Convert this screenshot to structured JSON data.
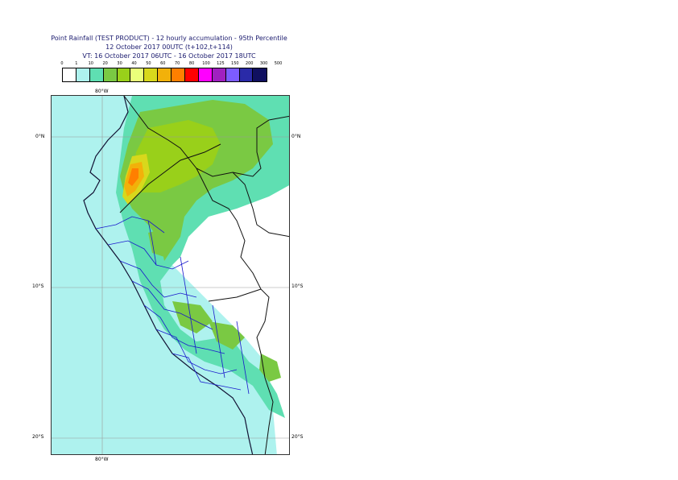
{
  "title": {
    "line1": "Point Rainfall (TEST PRODUCT) - 12 hourly accumulation - 95th Percentile",
    "line2": "12 October 2017 00UTC (t+102,t+114)",
    "line3": "VT: 16 October 2017 06UTC - 16 October 2017 18UTC"
  },
  "legend": {
    "ticks": [
      "0",
      "1",
      "10",
      "20",
      "30",
      "40",
      "50",
      "60",
      "70",
      "80",
      "100",
      "125",
      "150",
      "200",
      "300",
      "500"
    ],
    "colors": [
      "#ffffff",
      "#aef2ee",
      "#5fdfb2",
      "#7ac943",
      "#99d01a",
      "#eaff7a",
      "#d8d81c",
      "#f2b10a",
      "#ff7f00",
      "#ff0000",
      "#ff00ff",
      "#a020c0",
      "#7c5cff",
      "#2a2aa8",
      "#101060"
    ]
  },
  "map": {
    "lat_labels": {
      "top_left": "0°N",
      "top_right": "0°N",
      "mid_left": "10°S",
      "mid_right": "10°S",
      "bottom_left": "20°S",
      "bottom_right": "20°S"
    },
    "lon_labels": {
      "top": "80°W",
      "bottom": "80°W"
    },
    "colors": {
      "land_border": "#111111",
      "region_border": "#1a1acc",
      "coast": "#111133",
      "gridline": "#999999"
    }
  }
}
